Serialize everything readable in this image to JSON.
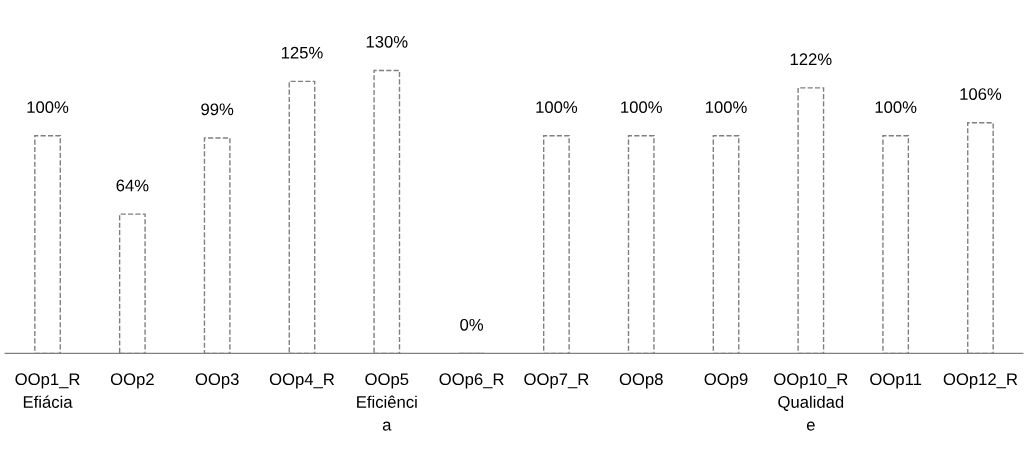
{
  "chart_data": {
    "type": "bar",
    "categories": [
      "OOp1_R\nEfiácia",
      "OOp2",
      "OOp3",
      "OOp4_R",
      "OOp5\nEficiênci\na",
      "OOp6_R",
      "OOp7_R",
      "OOp8",
      "OOp9",
      "OOp10_R\nQualidad\ne",
      "OOp11",
      "OOp12_R"
    ],
    "values": [
      100,
      64,
      99,
      125,
      130,
      0,
      100,
      100,
      100,
      122,
      100,
      106
    ],
    "value_labels": [
      "100%",
      "64%",
      "99%",
      "125%",
      "130%",
      "0%",
      "100%",
      "100%",
      "100%",
      "122%",
      "100%",
      "106%"
    ],
    "color": "#7f7f7f",
    "line_style": "dashed",
    "grid": false,
    "legend": false
  }
}
